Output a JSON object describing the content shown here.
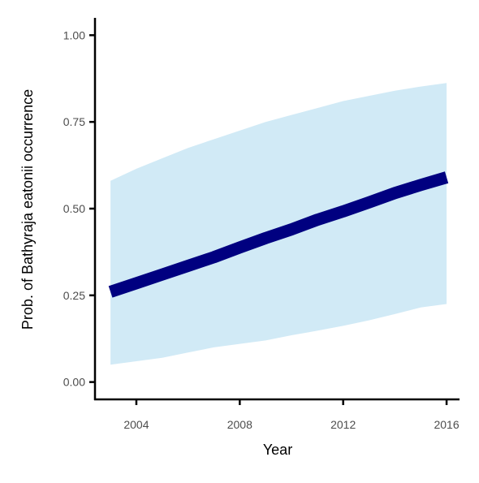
{
  "chart_data": {
    "type": "line",
    "title": "",
    "xlabel": "Year",
    "ylabel": "Prob. of  Bathyraja eatonii  occurrence",
    "xlim": [
      2002.4,
      2016.5
    ],
    "ylim": [
      -0.05,
      1.05
    ],
    "xticks": [
      2004,
      2008,
      2012,
      2016
    ],
    "xtick_labels": [
      "2004",
      "2008",
      "2012",
      "2016"
    ],
    "yticks": [
      0.0,
      0.25,
      0.5,
      0.75,
      1.0
    ],
    "ytick_labels": [
      "0.00",
      "0.25",
      "0.50",
      "0.75",
      "1.00"
    ],
    "grid": false,
    "legend": "none",
    "series": [
      {
        "x": [
          2003,
          2004,
          2005,
          2006,
          2007,
          2008,
          2009,
          2010,
          2011,
          2012,
          2013,
          2014,
          2015,
          2016
        ],
        "y": [
          0.26,
          0.285,
          0.31,
          0.335,
          0.36,
          0.388,
          0.415,
          0.44,
          0.468,
          0.492,
          0.518,
          0.545,
          0.568,
          0.59
        ],
        "lower": [
          0.05,
          0.06,
          0.07,
          0.085,
          0.1,
          0.11,
          0.12,
          0.135,
          0.148,
          0.162,
          0.178,
          0.196,
          0.215,
          0.225
        ],
        "upper": [
          0.58,
          0.615,
          0.645,
          0.675,
          0.7,
          0.725,
          0.75,
          0.77,
          0.79,
          0.81,
          0.825,
          0.84,
          0.852,
          0.862
        ]
      }
    ],
    "colors": {
      "line": "#000080",
      "ribbon": "#d1eaf6",
      "axis": "#000000",
      "tick_label": "#4d4d4d"
    }
  }
}
